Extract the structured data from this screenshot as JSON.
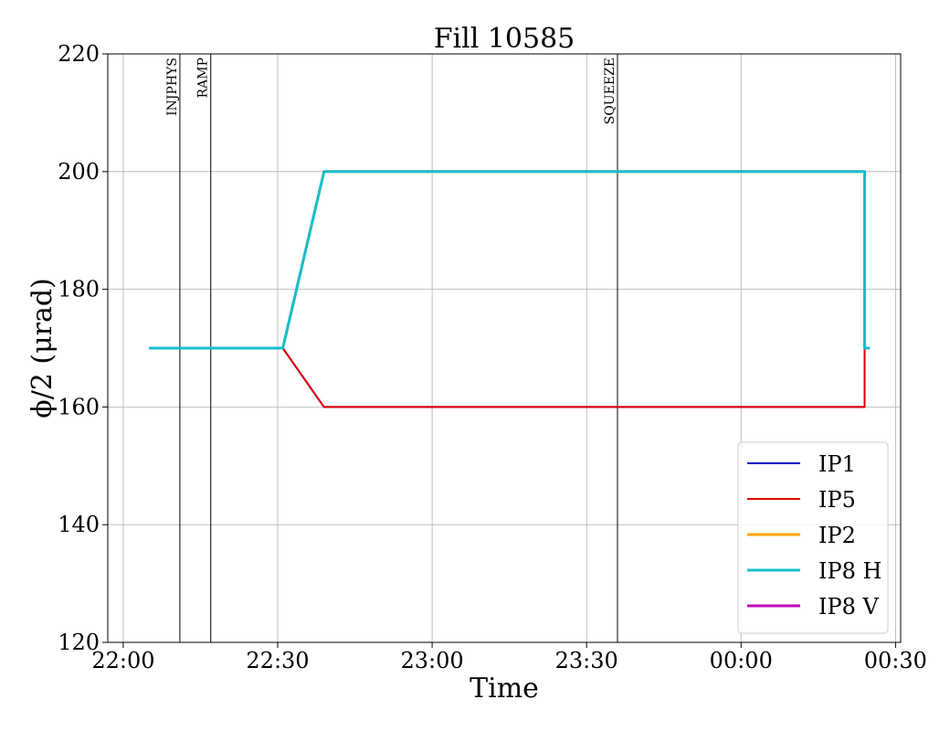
{
  "chart_data": {
    "type": "line",
    "title": "Fill 10585",
    "xlabel": "Time",
    "ylabel": "ϕ/2 (μrad)",
    "ylim": [
      120,
      220
    ],
    "xlim": [
      "21:57",
      "00:31"
    ],
    "x_ticks": [
      "22:00",
      "22:30",
      "23:00",
      "23:30",
      "00:00",
      "00:30"
    ],
    "y_ticks": [
      120,
      140,
      160,
      180,
      200,
      220
    ],
    "grid": true,
    "legend_position": "lower-right",
    "events": [
      {
        "label": "INJPHYS",
        "time": "22:11"
      },
      {
        "label": "RAMP",
        "time": "22:17"
      },
      {
        "label": "SQUEEZE",
        "time": "23:36"
      }
    ],
    "series": [
      {
        "name": "IP1",
        "color": "#0000cc",
        "width": 2,
        "points": [
          [
            "22:05",
            170
          ],
          [
            "22:31",
            170
          ],
          [
            "22:39",
            160
          ],
          [
            "00:24",
            160
          ],
          [
            "00:24",
            170
          ],
          [
            "00:25",
            170
          ]
        ]
      },
      {
        "name": "IP5",
        "color": "#e00000",
        "width": 2,
        "points": [
          [
            "22:05",
            170
          ],
          [
            "22:31",
            170
          ],
          [
            "22:39",
            160
          ],
          [
            "00:24",
            160
          ],
          [
            "00:24",
            170
          ],
          [
            "00:25",
            170
          ]
        ]
      },
      {
        "name": "IP2",
        "color": "#ffa500",
        "width": 3,
        "points": [
          [
            "22:05",
            170
          ],
          [
            "22:31",
            170
          ],
          [
            "22:39",
            200
          ],
          [
            "00:24",
            200
          ],
          [
            "00:24",
            170
          ],
          [
            "00:25",
            170
          ]
        ]
      },
      {
        "name": "IP8 H",
        "color": "#17becf",
        "width": 3,
        "points": [
          [
            "22:05",
            170
          ],
          [
            "22:31",
            170
          ],
          [
            "22:39",
            200
          ],
          [
            "00:24",
            200
          ],
          [
            "00:24",
            170
          ],
          [
            "00:25",
            170
          ]
        ]
      },
      {
        "name": "IP8 V",
        "color": "#bf00bf",
        "width": 3,
        "points": []
      }
    ]
  }
}
